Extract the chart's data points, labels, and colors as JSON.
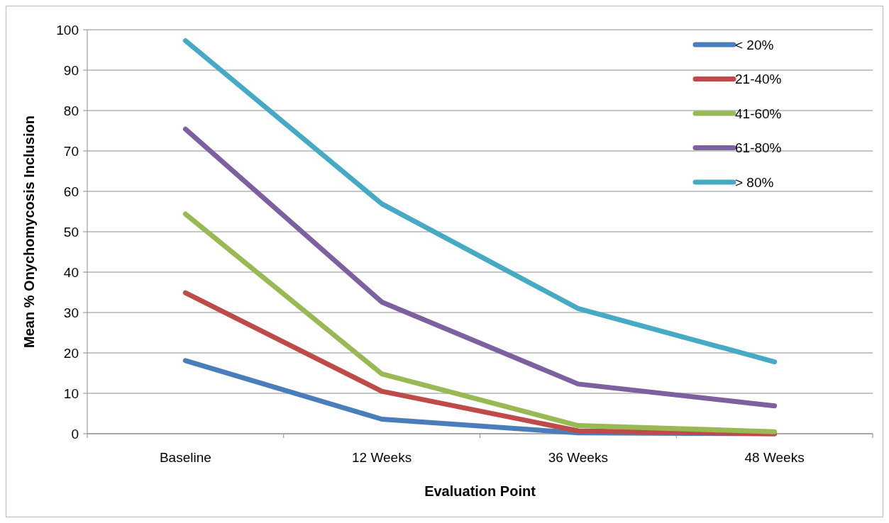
{
  "chart_data": {
    "type": "line",
    "xlabel": "Evaluation Point",
    "ylabel": "Mean % Onychomycosis Inclusion",
    "categories": [
      "Baseline",
      "12 Weeks",
      "36 Weeks",
      "48 Weeks"
    ],
    "series": [
      {
        "name": "< 20%",
        "color": "#4a7ebb",
        "values": [
          18.1,
          3.6,
          0.2,
          0
        ]
      },
      {
        "name": "21-40%",
        "color": "#be4b48",
        "values": [
          34.9,
          10.5,
          0.7,
          0
        ]
      },
      {
        "name": "41-60%",
        "color": "#98b954",
        "values": [
          54.4,
          14.8,
          2,
          0.5
        ]
      },
      {
        "name": "61-80%",
        "color": "#7d60a0",
        "values": [
          75.4,
          32.6,
          12.3,
          6.9
        ]
      },
      {
        "name": "> 80%",
        "color": "#46aac5",
        "values": [
          97.3,
          56.9,
          31,
          17.8
        ]
      }
    ],
    "ylim": [
      0,
      100
    ],
    "yticks": [
      0,
      10,
      20,
      30,
      40,
      50,
      60,
      70,
      80,
      90,
      100
    ],
    "grid": "y",
    "legend": "top right",
    "marker": "none",
    "line_style": "solid"
  }
}
